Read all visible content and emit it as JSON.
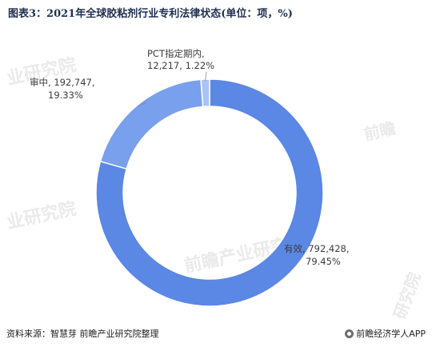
{
  "header": {
    "title": "图表3：2021年全球胶粘剂行业专利法律状态(单位：项，%)"
  },
  "footer": {
    "source": "资料来源：智慧芽 前瞻产业研究院整理",
    "brand": "前瞻经济学人APP"
  },
  "colors": {
    "slices": [
      "#5b87e5",
      "#78a0ec",
      "#a7c4f5"
    ]
  },
  "chart_data": {
    "type": "pie",
    "title": "图表3：2021年全球胶粘剂行业专利法律状态(单位：项，%)",
    "donut": true,
    "slices": [
      {
        "label": "有效",
        "value": 792428,
        "value_text": "792,428",
        "percent_text": "79.45%"
      },
      {
        "label": "审中",
        "value": 192747,
        "value_text": "192,747",
        "percent_text": "19.33%"
      },
      {
        "label": "PCT指定期内",
        "value": 12217,
        "value_text": "12,217",
        "percent_text": "1.22%"
      }
    ]
  }
}
